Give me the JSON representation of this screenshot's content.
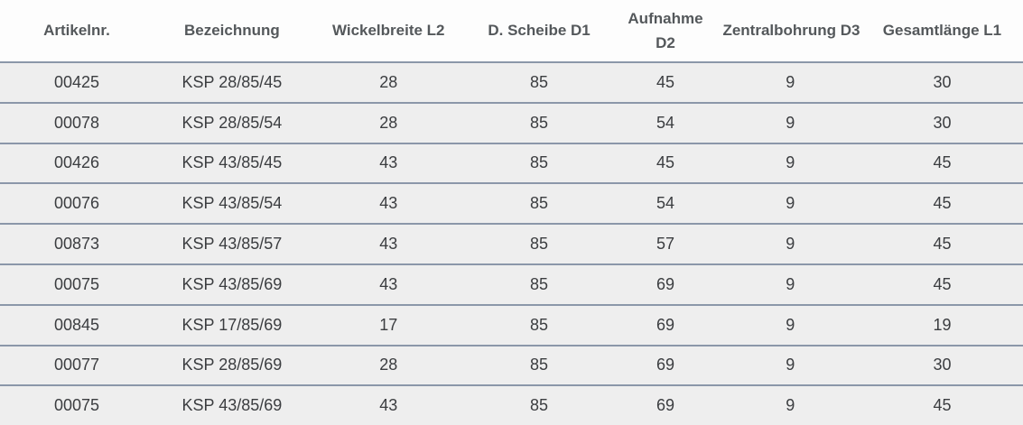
{
  "chart_data": {
    "type": "table",
    "columns": [
      "Artikelnr.",
      "Bezeichnung",
      "Wickelbreite L2",
      "D. Scheibe D1",
      "Aufnahme D2",
      "Zentralbohrung D3",
      "Gesamtlänge L1"
    ],
    "rows": [
      [
        "00425",
        "KSP 28/85/45",
        "28",
        "85",
        "45",
        "9",
        "30"
      ],
      [
        "00078",
        "KSP 28/85/54",
        "28",
        "85",
        "54",
        "9",
        "30"
      ],
      [
        "00426",
        "KSP 43/85/45",
        "43",
        "85",
        "45",
        "9",
        "45"
      ],
      [
        "00076",
        "KSP 43/85/54",
        "43",
        "85",
        "54",
        "9",
        "45"
      ],
      [
        "00873",
        "KSP 43/85/57",
        "43",
        "85",
        "57",
        "9",
        "45"
      ],
      [
        "00075",
        "KSP 43/85/69",
        "43",
        "85",
        "69",
        "9",
        "45"
      ],
      [
        "00845",
        "KSP 17/85/69",
        "17",
        "85",
        "69",
        "9",
        "19"
      ],
      [
        "00077",
        "KSP 28/85/69",
        "28",
        "85",
        "69",
        "9",
        "30"
      ],
      [
        "00075",
        "KSP 43/85/69",
        "43",
        "85",
        "69",
        "9",
        "45"
      ]
    ]
  },
  "colors": {
    "row_bg": "#eeeeee",
    "separator": "#8b97a9",
    "header_text": "#54585b",
    "cell_text": "#3b3d40",
    "header_bg": "#fdfdfd"
  }
}
